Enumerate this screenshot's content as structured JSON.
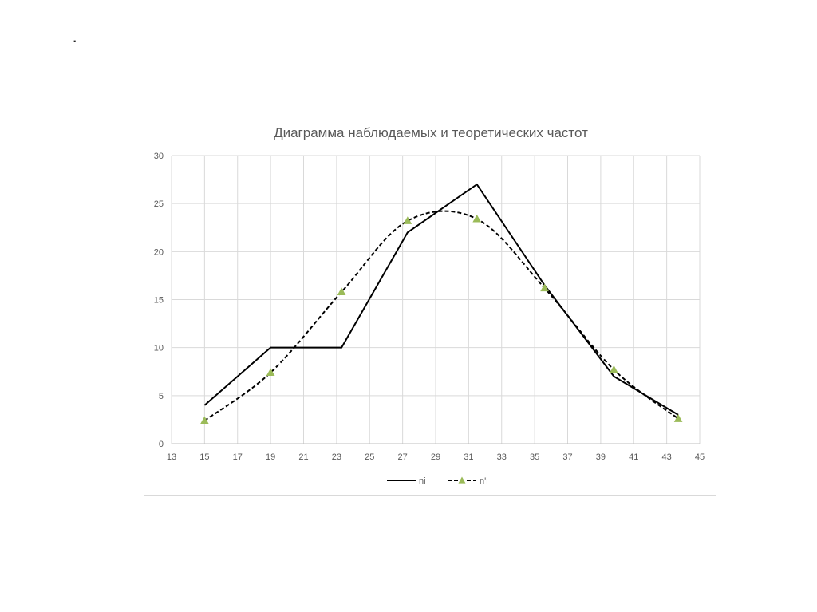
{
  "slide": {
    "bullet": "·"
  },
  "chart_data": {
    "type": "line",
    "title": "Диаграмма наблюдаемых и теоретических частот",
    "xlabel": "",
    "ylabel": "",
    "xlim": [
      13,
      45
    ],
    "ylim": [
      0,
      30
    ],
    "xticks": [
      13,
      15,
      17,
      19,
      21,
      23,
      25,
      27,
      29,
      31,
      33,
      35,
      37,
      39,
      41,
      43,
      45
    ],
    "yticks": [
      0,
      5,
      10,
      15,
      20,
      25,
      30
    ],
    "grid": "vertical and horizontal",
    "legend_position": "bottom",
    "series": [
      {
        "name": "ni",
        "style": "solid",
        "color": "#000000",
        "points": [
          [
            15,
            4
          ],
          [
            19,
            10
          ],
          [
            23.3,
            10
          ],
          [
            27.3,
            22
          ],
          [
            31.5,
            27
          ],
          [
            35.6,
            16.5
          ],
          [
            39.8,
            7
          ],
          [
            43.7,
            3
          ]
        ]
      },
      {
        "name": "n'i",
        "style": "dashed",
        "color": "#000000",
        "marker": "triangle",
        "marker_color": "#9bbb59",
        "points": [
          [
            15,
            2.4
          ],
          [
            19,
            7.4
          ],
          [
            23.3,
            15.8
          ],
          [
            27.3,
            23.2
          ],
          [
            31.5,
            23.4
          ],
          [
            35.6,
            16.2
          ],
          [
            39.8,
            7.7
          ],
          [
            43.7,
            2.6
          ]
        ]
      }
    ]
  }
}
